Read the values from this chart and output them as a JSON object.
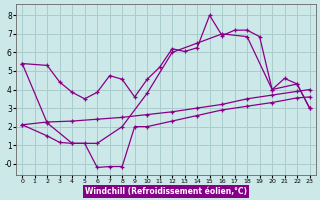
{
  "xlabel": "Windchill (Refroidissement éolien,°C)",
  "background_color": "#cce8e8",
  "grid_color": "#aacccc",
  "line_color": "#880088",
  "x_ticks": [
    0,
    1,
    2,
    3,
    4,
    5,
    6,
    7,
    8,
    9,
    10,
    11,
    12,
    13,
    14,
    15,
    16,
    17,
    18,
    19,
    20,
    21,
    22,
    23
  ],
  "y_ticks": [
    0,
    1,
    2,
    3,
    4,
    5,
    6,
    7,
    8
  ],
  "y_tick_labels": [
    "-0",
    "1",
    "2",
    "3",
    "4",
    "5",
    "6",
    "7",
    "8"
  ],
  "ylim": [
    -0.6,
    8.6
  ],
  "xlim": [
    -0.5,
    23.5
  ],
  "line1_x": [
    0,
    2,
    3,
    4,
    5,
    6,
    7,
    8,
    9,
    10,
    11,
    12,
    13,
    14,
    15,
    16,
    17,
    18,
    19,
    20,
    21,
    22,
    23
  ],
  "line1_y": [
    5.4,
    5.3,
    4.4,
    3.85,
    3.5,
    3.85,
    4.75,
    4.55,
    3.6,
    4.55,
    5.2,
    6.2,
    6.05,
    6.25,
    8.0,
    6.9,
    7.2,
    7.2,
    6.85,
    4.0,
    4.6,
    4.3,
    3.0
  ],
  "line2_x": [
    0,
    2,
    4,
    6,
    8,
    10,
    12,
    14,
    16,
    18,
    20,
    22,
    23
  ],
  "line2_y": [
    5.4,
    2.2,
    1.1,
    1.1,
    2.0,
    3.8,
    6.0,
    6.5,
    7.0,
    6.85,
    4.0,
    4.3,
    3.0
  ],
  "line3_x": [
    0,
    2,
    4,
    6,
    8,
    10,
    12,
    14,
    16,
    18,
    20,
    22,
    23
  ],
  "line3_y": [
    2.1,
    2.25,
    2.3,
    2.4,
    2.5,
    2.65,
    2.8,
    3.0,
    3.2,
    3.5,
    3.7,
    3.9,
    4.0
  ],
  "line4_x": [
    0,
    2,
    3,
    4,
    5,
    6,
    7,
    8,
    9,
    10,
    12,
    14,
    16,
    18,
    20,
    22,
    23
  ],
  "line4_y": [
    2.1,
    1.5,
    1.15,
    1.1,
    1.1,
    -0.2,
    -0.15,
    -0.15,
    2.0,
    2.0,
    2.3,
    2.6,
    2.9,
    3.1,
    3.3,
    3.55,
    3.6
  ]
}
